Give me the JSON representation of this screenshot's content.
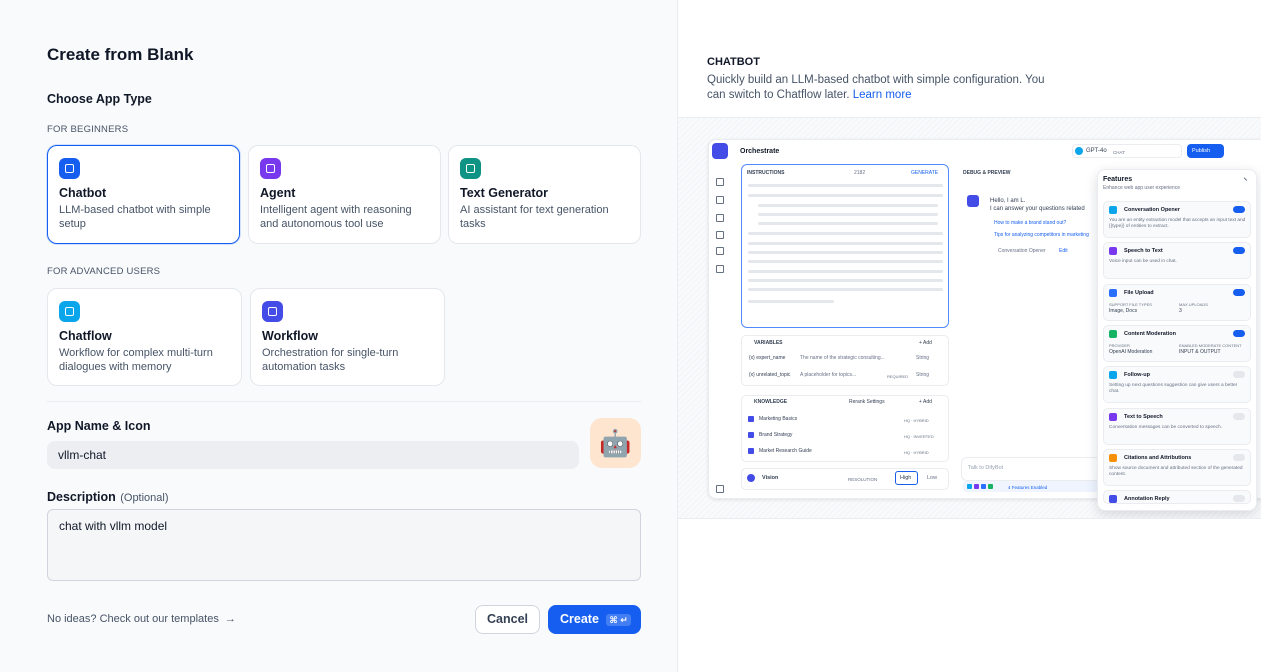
{
  "dialog": {
    "title": "Create from Blank",
    "choose_label": "Choose App Type",
    "beginners_label": "FOR BEGINNERS",
    "beginner_types": [
      {
        "name": "Chatbot",
        "desc": "LLM-based chatbot with simple setup",
        "color": "#155eef",
        "selected": true
      },
      {
        "name": "Agent",
        "desc": "Intelligent agent with reasoning and autonomous tool use",
        "color": "#7839ee",
        "selected": false
      },
      {
        "name": "Text Generator",
        "desc": "AI assistant for text generation tasks",
        "color": "#0e9384",
        "selected": false
      }
    ],
    "advanced_label": "FOR ADVANCED USERS",
    "advanced_types": [
      {
        "name": "Chatflow",
        "desc": "Workflow for complex multi-turn dialogues with memory",
        "color": "#0ba5ec",
        "selected": false
      },
      {
        "name": "Workflow",
        "desc": "Orchestration for single-turn automation tasks",
        "color": "#444ce7",
        "selected": false
      }
    ],
    "name_label": "App Name & Icon",
    "name_value": "vllm-chat",
    "icon": "🤖",
    "desc_label": "Description",
    "desc_optional": "(Optional)",
    "desc_value": "chat with vllm model",
    "templates_link": "No ideas? Check out our templates",
    "templates_arrow": "→",
    "cancel": "Cancel",
    "create": "Create",
    "shortcut": "⌘ ↵"
  },
  "preview": {
    "title": "CHATBOT",
    "description": "Quickly build an LLM-based chatbot with simple configuration. You can switch to Chatflow later.",
    "learn_more": "Learn more",
    "screenshot": {
      "header": "Orchestrate",
      "model": "GPT-4o",
      "model_mode": "CHAT",
      "publish": "Publish",
      "instructions_label": "INSTRUCTIONS",
      "instructions_count": "2182",
      "generate": "GENERATE",
      "variables_label": "VARIABLES",
      "add": "+ Add",
      "variables": [
        {
          "key": "{x} expert_name",
          "desc": "The name of the strategic consulting...",
          "tag": "",
          "type": "String"
        },
        {
          "key": "{x} unrelated_topic",
          "desc": "A placeholder for topics...",
          "tag": "REQUIRED",
          "type": "String"
        }
      ],
      "knowledge_label": "KNOWLEDGE",
      "rerank": "Rerank Settings",
      "knowledge": [
        {
          "name": "Marketing Basics",
          "mode": "HQ · HYBRID"
        },
        {
          "name": "Brand Strategy",
          "mode": "HQ · INVERTED"
        },
        {
          "name": "Market Research Guide",
          "mode": "HQ · HYBRID"
        }
      ],
      "vision": "Vision",
      "resolution": "RESOLUTION",
      "high": "High",
      "low": "Low",
      "debug_label": "DEBUG & PREVIEW",
      "greeting": [
        "Hello, I am L.",
        "I can answer your questions related"
      ],
      "suggestions": [
        "How to make a brand stand out?",
        "Tips for analyzing competitors in marketing"
      ],
      "opener": "Conversation Opener",
      "edit": "Edit",
      "chat_placeholder": "Talk to DifyBot",
      "features_enabled": "4 Features Enabled",
      "features_title": "Features",
      "features_subtitle": "Enhance web app user experience",
      "features": [
        {
          "name": "Conversation Opener",
          "desc": "You are an entity extraction model that accepts an input text and {{type}} of entities to extract.",
          "enabled": true,
          "color": "#0ba5ec"
        },
        {
          "name": "Speech to Text",
          "desc": "Voice input can be used in chat.",
          "enabled": true,
          "color": "#7839ee"
        },
        {
          "name": "File Upload",
          "details": [
            [
              "SUPPORT FILE TYPES",
              "Image, Docs"
            ],
            [
              "MAX UPLOADS",
              "3"
            ]
          ],
          "enabled": true,
          "color": "#2970ff"
        },
        {
          "name": "Content Moderation",
          "details": [
            [
              "PROVIDER",
              "OpenAI Moderation"
            ],
            [
              "ENABLED MODERATE CONTENT",
              "INPUT & OUTPUT"
            ]
          ],
          "enabled": true,
          "color": "#16b364"
        },
        {
          "name": "Follow-up",
          "desc": "Setting up next questions suggestion can give users a better chat.",
          "enabled": false,
          "color": "#0ba5ec"
        },
        {
          "name": "Text to Speech",
          "desc": "Conversation messages can be converted to speech.",
          "enabled": false,
          "color": "#7839ee"
        },
        {
          "name": "Citations and Attributions",
          "desc": "Show source document and attributed section of the generated content.",
          "enabled": false,
          "color": "#f79009"
        },
        {
          "name": "Annotation Reply",
          "enabled": false,
          "color": "#444ce7"
        }
      ]
    }
  }
}
